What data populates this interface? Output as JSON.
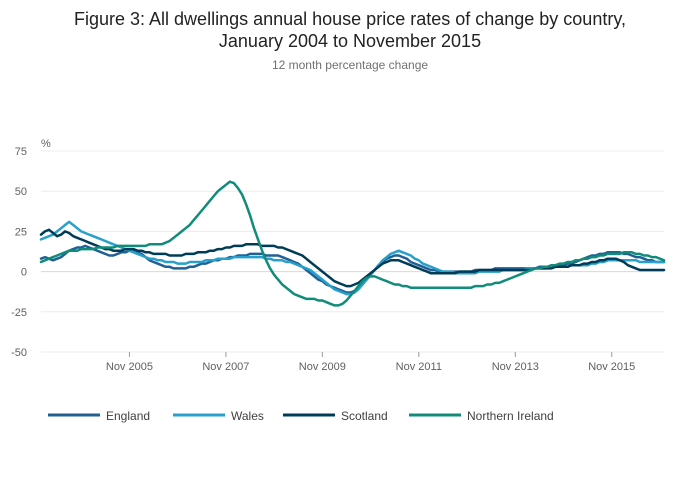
{
  "title_line1": "Figure 3: All dwellings annual house price rates of change by country,",
  "title_line2": "January 2004 to November 2015",
  "subtitle": "12 month percentage change",
  "chart_data": {
    "type": "line",
    "ylabel": "%",
    "xlabel": "",
    "ylim": [
      -50,
      75
    ],
    "yticks": [
      75,
      50,
      25,
      0,
      -25,
      -50
    ],
    "x_start": "Jan 2004",
    "x_end": "Nov 2015",
    "xticks": [
      "Nov 2005",
      "Nov 2007",
      "Nov 2009",
      "Nov 2011",
      "Nov 2013",
      "Nov 2015"
    ],
    "grid": true,
    "legend": "bottom",
    "series": [
      {
        "name": "England",
        "color": "#206095",
        "values": [
          8,
          9,
          8,
          7,
          8,
          9,
          11,
          13,
          14,
          15,
          15,
          16,
          15,
          14,
          13,
          12,
          11,
          10,
          10,
          11,
          12,
          12,
          13,
          13,
          12,
          11,
          9,
          7,
          6,
          5,
          4,
          3,
          3,
          2,
          2,
          2,
          2,
          3,
          3,
          4,
          5,
          5,
          6,
          7,
          7,
          8,
          8,
          9,
          9,
          10,
          10,
          10,
          11,
          11,
          11,
          11,
          10,
          10,
          10,
          10,
          9,
          8,
          7,
          6,
          5,
          3,
          1,
          -1,
          -3,
          -5,
          -6,
          -8,
          -9,
          -10,
          -11,
          -12,
          -13,
          -13,
          -12,
          -10,
          -8,
          -5,
          -2,
          1,
          4,
          6,
          8,
          9,
          10,
          10,
          9,
          8,
          6,
          5,
          4,
          3,
          2,
          1,
          1,
          0,
          0,
          0,
          0,
          0,
          0,
          0,
          0,
          0,
          1,
          1,
          1,
          1,
          1,
          2,
          2,
          2,
          2,
          2,
          2,
          2,
          2,
          2,
          2,
          2,
          3,
          3,
          3,
          3,
          3,
          4,
          4,
          5,
          5,
          6,
          7,
          8,
          9,
          10,
          10,
          11,
          11,
          12,
          12,
          12,
          12,
          11,
          11,
          10,
          9,
          9,
          8,
          7,
          7,
          6,
          6,
          6
        ]
      },
      {
        "name": "Wales",
        "color": "#27a0cc",
        "values": [
          20,
          21,
          22,
          23,
          25,
          27,
          29,
          31,
          29,
          27,
          25,
          24,
          23,
          22,
          21,
          20,
          19,
          18,
          17,
          16,
          15,
          14,
          13,
          12,
          11,
          10,
          9,
          8,
          8,
          7,
          7,
          6,
          6,
          6,
          5,
          5,
          5,
          6,
          6,
          6,
          6,
          7,
          7,
          7,
          8,
          8,
          8,
          8,
          9,
          9,
          9,
          9,
          9,
          9,
          9,
          9,
          8,
          8,
          7,
          7,
          7,
          6,
          6,
          5,
          4,
          3,
          2,
          1,
          -1,
          -3,
          -5,
          -7,
          -9,
          -11,
          -12,
          -13,
          -14,
          -14,
          -13,
          -11,
          -8,
          -5,
          -2,
          1,
          4,
          7,
          9,
          11,
          12,
          13,
          12,
          11,
          10,
          8,
          7,
          5,
          4,
          3,
          2,
          1,
          0,
          0,
          0,
          -1,
          -1,
          -1,
          -1,
          -1,
          -1,
          0,
          0,
          0,
          0,
          0,
          0,
          1,
          1,
          1,
          1,
          1,
          1,
          2,
          2,
          2,
          2,
          2,
          2,
          3,
          3,
          3,
          3,
          3,
          4,
          4,
          4,
          4,
          4,
          5,
          5,
          6,
          6,
          7,
          7,
          7,
          7,
          7,
          7,
          7,
          7,
          6,
          6,
          6,
          6,
          6,
          6,
          6
        ]
      },
      {
        "name": "Scotland",
        "color": "#003c57",
        "values": [
          23,
          25,
          26,
          24,
          22,
          23,
          25,
          24,
          22,
          21,
          20,
          19,
          18,
          17,
          16,
          15,
          14,
          14,
          13,
          13,
          13,
          14,
          14,
          14,
          13,
          13,
          12,
          12,
          11,
          11,
          11,
          11,
          10,
          10,
          10,
          10,
          11,
          11,
          11,
          12,
          12,
          12,
          13,
          13,
          14,
          14,
          15,
          15,
          16,
          16,
          16,
          17,
          17,
          17,
          17,
          16,
          16,
          16,
          16,
          15,
          15,
          14,
          13,
          12,
          11,
          10,
          8,
          6,
          4,
          2,
          0,
          -2,
          -4,
          -6,
          -7,
          -8,
          -9,
          -9,
          -8,
          -7,
          -5,
          -3,
          -1,
          1,
          3,
          5,
          6,
          7,
          7,
          7,
          6,
          5,
          4,
          3,
          2,
          1,
          0,
          -1,
          -1,
          -1,
          -1,
          -1,
          -1,
          -1,
          0,
          0,
          0,
          0,
          0,
          1,
          1,
          1,
          1,
          1,
          1,
          1,
          1,
          1,
          1,
          1,
          1,
          1,
          1,
          2,
          2,
          2,
          2,
          2,
          3,
          3,
          3,
          3,
          4,
          4,
          4,
          5,
          5,
          6,
          6,
          7,
          7,
          8,
          8,
          8,
          7,
          6,
          4,
          3,
          2,
          1,
          1,
          1,
          1,
          1,
          1,
          1
        ]
      },
      {
        "name": "Northern Ireland",
        "color": "#118c7b",
        "values": [
          6,
          7,
          8,
          9,
          10,
          11,
          12,
          13,
          13,
          13,
          14,
          14,
          14,
          14,
          15,
          15,
          15,
          15,
          15,
          16,
          16,
          16,
          16,
          16,
          16,
          16,
          16,
          17,
          17,
          17,
          17,
          18,
          19,
          21,
          23,
          25,
          27,
          29,
          32,
          35,
          38,
          41,
          44,
          47,
          50,
          52,
          54,
          56,
          55,
          52,
          48,
          42,
          35,
          27,
          20,
          13,
          7,
          2,
          -2,
          -5,
          -8,
          -10,
          -12,
          -14,
          -15,
          -16,
          -17,
          -17,
          -17,
          -18,
          -18,
          -19,
          -20,
          -21,
          -21,
          -20,
          -18,
          -15,
          -12,
          -9,
          -6,
          -4,
          -3,
          -3,
          -4,
          -5,
          -6,
          -7,
          -8,
          -8,
          -9,
          -9,
          -10,
          -10,
          -10,
          -10,
          -10,
          -10,
          -10,
          -10,
          -10,
          -10,
          -10,
          -10,
          -10,
          -10,
          -10,
          -10,
          -9,
          -9,
          -9,
          -8,
          -8,
          -7,
          -7,
          -6,
          -5,
          -4,
          -3,
          -2,
          -1,
          0,
          1,
          2,
          2,
          3,
          3,
          4,
          4,
          5,
          5,
          6,
          6,
          7,
          7,
          8,
          8,
          9,
          9,
          10,
          10,
          11,
          11,
          11,
          11,
          12,
          12,
          12,
          11,
          11,
          10,
          10,
          9,
          9,
          8,
          7
        ]
      }
    ]
  }
}
